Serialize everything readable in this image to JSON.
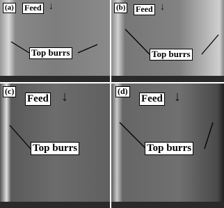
{
  "panels": [
    {
      "label": "(a)",
      "feed": "Feed",
      "arrow": "↓",
      "callout": "Top burrs"
    },
    {
      "label": "(b)",
      "feed": "Feed",
      "arrow": "↓",
      "callout": "Top burrs"
    },
    {
      "label": "(c)",
      "feed": "Feed",
      "arrow": "↓",
      "callout": "Top burrs"
    },
    {
      "label": "(d)",
      "feed": "Feed",
      "arrow": "↓",
      "callout": "Top burrs"
    }
  ]
}
